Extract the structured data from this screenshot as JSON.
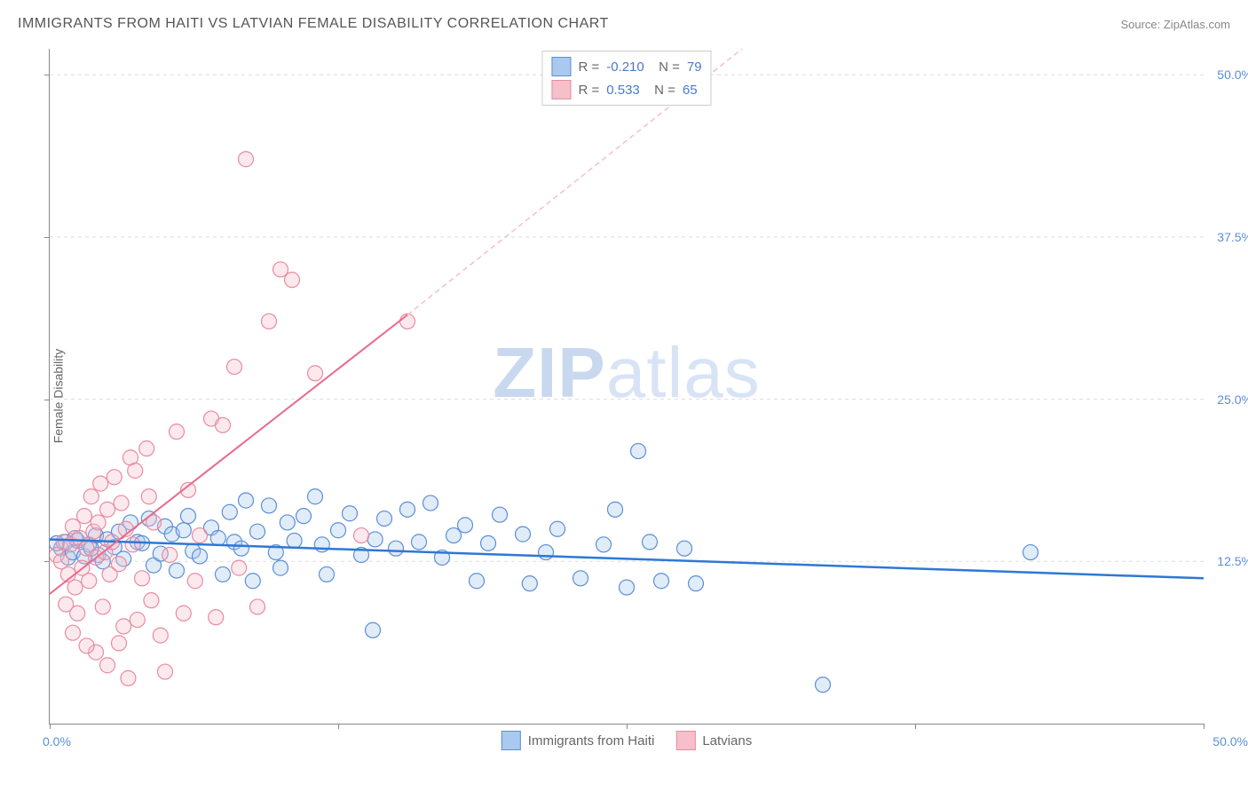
{
  "title": "IMMIGRANTS FROM HAITI VS LATVIAN FEMALE DISABILITY CORRELATION CHART",
  "source": "Source: ZipAtlas.com",
  "watermark_bold": "ZIP",
  "watermark_rest": "atlas",
  "ylabel": "Female Disability",
  "chart": {
    "type": "scatter",
    "xlim": [
      0,
      50
    ],
    "ylim": [
      0,
      52
    ],
    "x_ticks": [
      0,
      12.5,
      25,
      37.5,
      50
    ],
    "x_tick_labels_shown": {
      "0": "0.0%",
      "50": "50.0%"
    },
    "y_ticks": [
      12.5,
      25,
      37.5,
      50
    ],
    "y_tick_labels": [
      "12.5%",
      "25.0%",
      "37.5%",
      "50.0%"
    ],
    "background_color": "#ffffff",
    "grid_color": "#dddddd",
    "axis_color": "#888888",
    "marker_radius": 8.5,
    "series": [
      {
        "name": "Immigrants from Haiti",
        "fill": "#a9c9ef",
        "stroke": "#5b8fd6",
        "R": "-0.210",
        "N": "79",
        "trend": {
          "x1": 0,
          "y1": 14.2,
          "x2": 50,
          "y2": 11.2,
          "color": "#2d78d6",
          "width": 2.5,
          "dash": "none"
        },
        "points": [
          [
            0.5,
            13.5
          ],
          [
            0.7,
            14.0
          ],
          [
            0.8,
            12.8
          ],
          [
            1.0,
            13.2
          ],
          [
            1.2,
            14.1
          ],
          [
            1.5,
            12.9
          ],
          [
            1.7,
            13.8
          ],
          [
            2.0,
            14.5
          ],
          [
            2.1,
            13.0
          ],
          [
            2.3,
            12.5
          ],
          [
            2.5,
            14.2
          ],
          [
            2.8,
            13.6
          ],
          [
            3.0,
            14.8
          ],
          [
            3.2,
            12.7
          ],
          [
            3.5,
            15.5
          ],
          [
            3.8,
            14.0
          ],
          [
            4.0,
            13.9
          ],
          [
            4.3,
            15.8
          ],
          [
            4.5,
            12.2
          ],
          [
            4.8,
            13.1
          ],
          [
            5.0,
            15.2
          ],
          [
            5.3,
            14.6
          ],
          [
            5.5,
            11.8
          ],
          [
            5.8,
            14.9
          ],
          [
            6.0,
            16.0
          ],
          [
            6.2,
            13.3
          ],
          [
            6.5,
            12.9
          ],
          [
            7.0,
            15.1
          ],
          [
            7.3,
            14.3
          ],
          [
            7.5,
            11.5
          ],
          [
            7.8,
            16.3
          ],
          [
            8.0,
            14.0
          ],
          [
            8.3,
            13.5
          ],
          [
            8.5,
            17.2
          ],
          [
            8.8,
            11.0
          ],
          [
            9.0,
            14.8
          ],
          [
            9.5,
            16.8
          ],
          [
            9.8,
            13.2
          ],
          [
            10.0,
            12.0
          ],
          [
            10.3,
            15.5
          ],
          [
            10.6,
            14.1
          ],
          [
            11.0,
            16.0
          ],
          [
            11.5,
            17.5
          ],
          [
            11.8,
            13.8
          ],
          [
            12.0,
            11.5
          ],
          [
            12.5,
            14.9
          ],
          [
            13.0,
            16.2
          ],
          [
            13.5,
            13.0
          ],
          [
            14.0,
            7.2
          ],
          [
            14.1,
            14.2
          ],
          [
            14.5,
            15.8
          ],
          [
            15.0,
            13.5
          ],
          [
            15.5,
            16.5
          ],
          [
            16.0,
            14.0
          ],
          [
            16.5,
            17.0
          ],
          [
            17.0,
            12.8
          ],
          [
            17.5,
            14.5
          ],
          [
            18.0,
            15.3
          ],
          [
            18.5,
            11.0
          ],
          [
            19.0,
            13.9
          ],
          [
            19.5,
            16.1
          ],
          [
            20.5,
            14.6
          ],
          [
            20.8,
            10.8
          ],
          [
            21.5,
            13.2
          ],
          [
            22.0,
            15.0
          ],
          [
            23.0,
            11.2
          ],
          [
            24.0,
            13.8
          ],
          [
            24.5,
            16.5
          ],
          [
            25.0,
            10.5
          ],
          [
            25.5,
            21.0
          ],
          [
            26.0,
            14.0
          ],
          [
            26.5,
            11.0
          ],
          [
            27.5,
            13.5
          ],
          [
            28.0,
            10.8
          ],
          [
            33.5,
            3.0
          ],
          [
            42.5,
            13.2
          ],
          [
            0.3,
            13.9
          ],
          [
            1.1,
            14.3
          ],
          [
            1.8,
            13.5
          ]
        ]
      },
      {
        "name": "Latvians",
        "fill": "#f5c0ca",
        "stroke": "#e98ba0",
        "R": "0.533",
        "N": "65",
        "trend": {
          "x1": 0,
          "y1": 10.0,
          "x2": 15.5,
          "y2": 31.5,
          "color": "#e86b8a",
          "width": 2,
          "dash": "none"
        },
        "trend_ext": {
          "x1": 15.5,
          "y1": 31.5,
          "x2": 30,
          "y2": 52,
          "color": "#f5c0ca",
          "width": 1.5,
          "dash": "6,4"
        },
        "points": [
          [
            0.3,
            13.0
          ],
          [
            0.5,
            12.5
          ],
          [
            0.6,
            14.0
          ],
          [
            0.8,
            11.5
          ],
          [
            0.9,
            13.8
          ],
          [
            1.0,
            15.2
          ],
          [
            1.1,
            10.5
          ],
          [
            1.3,
            14.3
          ],
          [
            1.4,
            12.0
          ],
          [
            1.5,
            16.0
          ],
          [
            1.6,
            13.5
          ],
          [
            1.7,
            11.0
          ],
          [
            1.8,
            17.5
          ],
          [
            1.9,
            14.8
          ],
          [
            2.0,
            12.8
          ],
          [
            2.1,
            15.5
          ],
          [
            2.2,
            18.5
          ],
          [
            2.3,
            9.0
          ],
          [
            2.4,
            13.2
          ],
          [
            2.5,
            16.5
          ],
          [
            2.6,
            11.5
          ],
          [
            2.7,
            14.0
          ],
          [
            2.8,
            19.0
          ],
          [
            3.0,
            12.3
          ],
          [
            3.1,
            17.0
          ],
          [
            3.2,
            7.5
          ],
          [
            3.3,
            15.0
          ],
          [
            3.5,
            20.5
          ],
          [
            3.6,
            13.8
          ],
          [
            3.8,
            8.0
          ],
          [
            4.0,
            11.2
          ],
          [
            4.2,
            21.2
          ],
          [
            4.4,
            9.5
          ],
          [
            4.5,
            15.5
          ],
          [
            4.8,
            6.8
          ],
          [
            5.0,
            4.0
          ],
          [
            5.2,
            13.0
          ],
          [
            5.5,
            22.5
          ],
          [
            5.8,
            8.5
          ],
          [
            6.0,
            18.0
          ],
          [
            6.3,
            11.0
          ],
          [
            6.5,
            14.5
          ],
          [
            7.0,
            23.5
          ],
          [
            7.2,
            8.2
          ],
          [
            7.5,
            23.0
          ],
          [
            8.0,
            27.5
          ],
          [
            8.2,
            12.0
          ],
          [
            8.5,
            43.5
          ],
          [
            9.0,
            9.0
          ],
          [
            9.5,
            31.0
          ],
          [
            10.0,
            35.0
          ],
          [
            10.5,
            34.2
          ],
          [
            11.5,
            27.0
          ],
          [
            13.5,
            14.5
          ],
          [
            15.5,
            31.0
          ],
          [
            2.0,
            5.5
          ],
          [
            2.5,
            4.5
          ],
          [
            3.0,
            6.2
          ],
          [
            3.4,
            3.5
          ],
          [
            1.2,
            8.5
          ],
          [
            1.0,
            7.0
          ],
          [
            0.7,
            9.2
          ],
          [
            1.6,
            6.0
          ],
          [
            4.3,
            17.5
          ],
          [
            3.7,
            19.5
          ]
        ]
      }
    ]
  },
  "legend_bottom": [
    {
      "label": "Immigrants from Haiti",
      "fill": "#a9c9ef",
      "stroke": "#5b8fd6"
    },
    {
      "label": "Latvians",
      "fill": "#f5c0ca",
      "stroke": "#e98ba0"
    }
  ]
}
